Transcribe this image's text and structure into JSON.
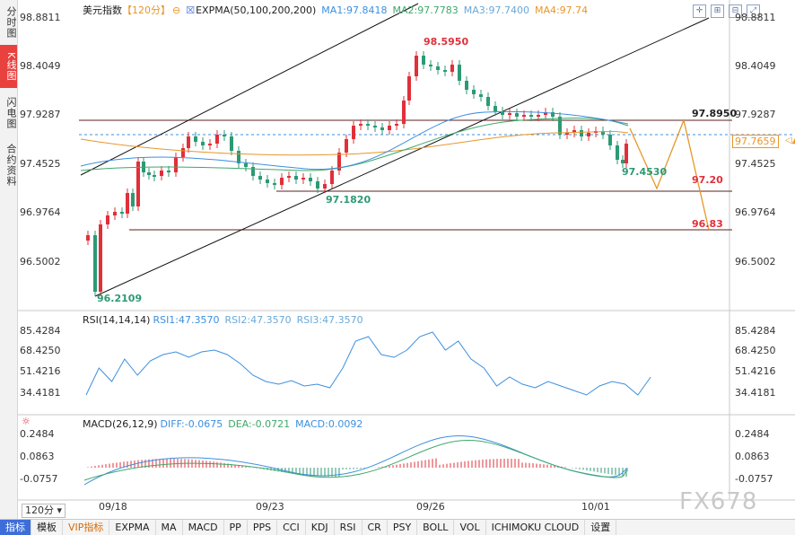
{
  "sidebar": {
    "tabs": [
      {
        "label": "分时图",
        "active": false
      },
      {
        "label": "K线图",
        "active": true
      },
      {
        "label": "闪电图",
        "active": false
      },
      {
        "label": "合约资料",
        "active": false
      }
    ]
  },
  "header": {
    "symbol": "美元指数",
    "period": "【120分】",
    "indicator": "EXPMA(50,100,200,200)",
    "ma1": "MA1:97.8418",
    "ma2": "MA2:97.7783",
    "ma3": "MA3:97.7400",
    "ma4": "MA4:97.74"
  },
  "colors": {
    "ma1": "#3d8fe0",
    "ma2": "#3fa86a",
    "ma3": "#6aa9d8",
    "ma4": "#e8962a",
    "up": "#e0303a",
    "down": "#2c9a74"
  },
  "price_axis": {
    "ticks": [
      "98.8811",
      "98.4049",
      "97.9287",
      "97.4525",
      "96.9764",
      "96.5002"
    ],
    "current": "97.7659"
  },
  "annotations": {
    "high": "98.5950",
    "low": "96.2109",
    "mid_low": "97.1820",
    "last_low": "97.4530",
    "res": "97.8950",
    "sup1": "97.20",
    "sup2": "96.83"
  },
  "rsi": {
    "title": "RSI(14,14,14)",
    "rsi1": "RSI1:47.3570",
    "rsi2": "RSI2:47.3570",
    "rsi3": "RSI3:47.3570",
    "ticks": [
      "85.4284",
      "68.4250",
      "51.4216",
      "34.4181"
    ]
  },
  "macd": {
    "title": "MACD(26,12,9)",
    "diff": "DIFF:-0.0675",
    "dea": "DEA:-0.0721",
    "macd": "MACD:0.0092",
    "ticks": [
      "0.2484",
      "0.0863",
      "-0.0757"
    ]
  },
  "x_axis": {
    "labels": [
      "09/18",
      "09/23",
      "09/26",
      "10/01"
    ]
  },
  "period_selector": "120分",
  "bottom_tabs": [
    {
      "label": "指标",
      "active": true
    },
    {
      "label": "模板"
    },
    {
      "label": "VIP指标",
      "vip": true
    },
    {
      "label": "EXPMA"
    },
    {
      "label": "MA"
    },
    {
      "label": "MACD"
    },
    {
      "label": "PP"
    },
    {
      "label": "PPS"
    },
    {
      "label": "CCI"
    },
    {
      "label": "KDJ"
    },
    {
      "label": "RSI"
    },
    {
      "label": "CR"
    },
    {
      "label": "PSY"
    },
    {
      "label": "BOLL"
    },
    {
      "label": "VOL"
    },
    {
      "label": "ICHIMOKU CLOUD"
    },
    {
      "label": "设置"
    }
  ],
  "watermark": "FX678"
}
